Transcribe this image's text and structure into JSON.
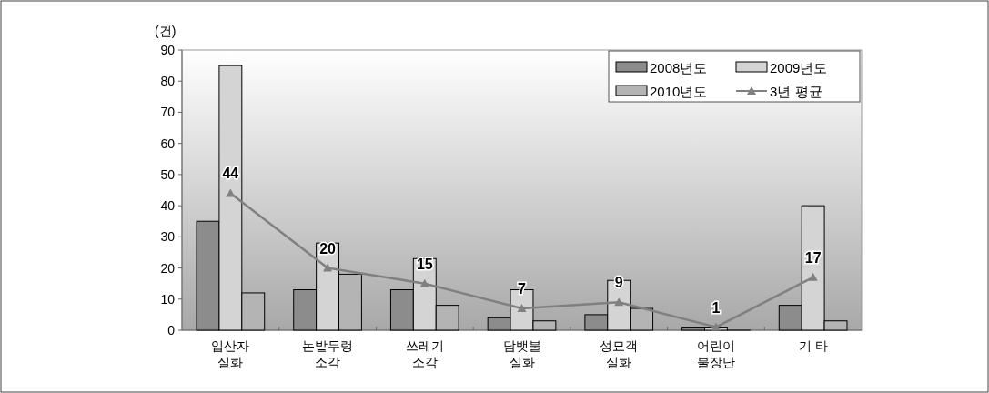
{
  "chart_data": {
    "type": "bar",
    "ylabel": "(건)",
    "categories": [
      "입산자\n실화",
      "논밭두렁\n소각",
      "쓰레기\n소각",
      "담뱃불\n실화",
      "성묘객\n실화",
      "어린이\n불장난",
      "기  타"
    ],
    "series": [
      {
        "name": "2008년도",
        "color": "#8c8c8c",
        "values": [
          35,
          13,
          13,
          4,
          5,
          1,
          8
        ]
      },
      {
        "name": "2009년도",
        "color": "#d4d4d4",
        "values": [
          85,
          28,
          23,
          13,
          16,
          1,
          40
        ]
      },
      {
        "name": "2010년도",
        "color": "#b4b4b4",
        "values": [
          12,
          18,
          8,
          3,
          7,
          0,
          3
        ]
      },
      {
        "name": "3년 평균",
        "type": "line",
        "color": "#808080",
        "marker": "triangle",
        "values": [
          44,
          20,
          15,
          7,
          9,
          1,
          17
        ],
        "value_labels": [
          "44",
          "20",
          "15",
          "7",
          "9",
          "1",
          "17"
        ]
      }
    ],
    "ylim": [
      0,
      90
    ],
    "yticks": [
      0,
      10,
      20,
      30,
      40,
      50,
      60,
      70,
      80,
      90
    ],
    "grid": false,
    "legend": "top right"
  }
}
